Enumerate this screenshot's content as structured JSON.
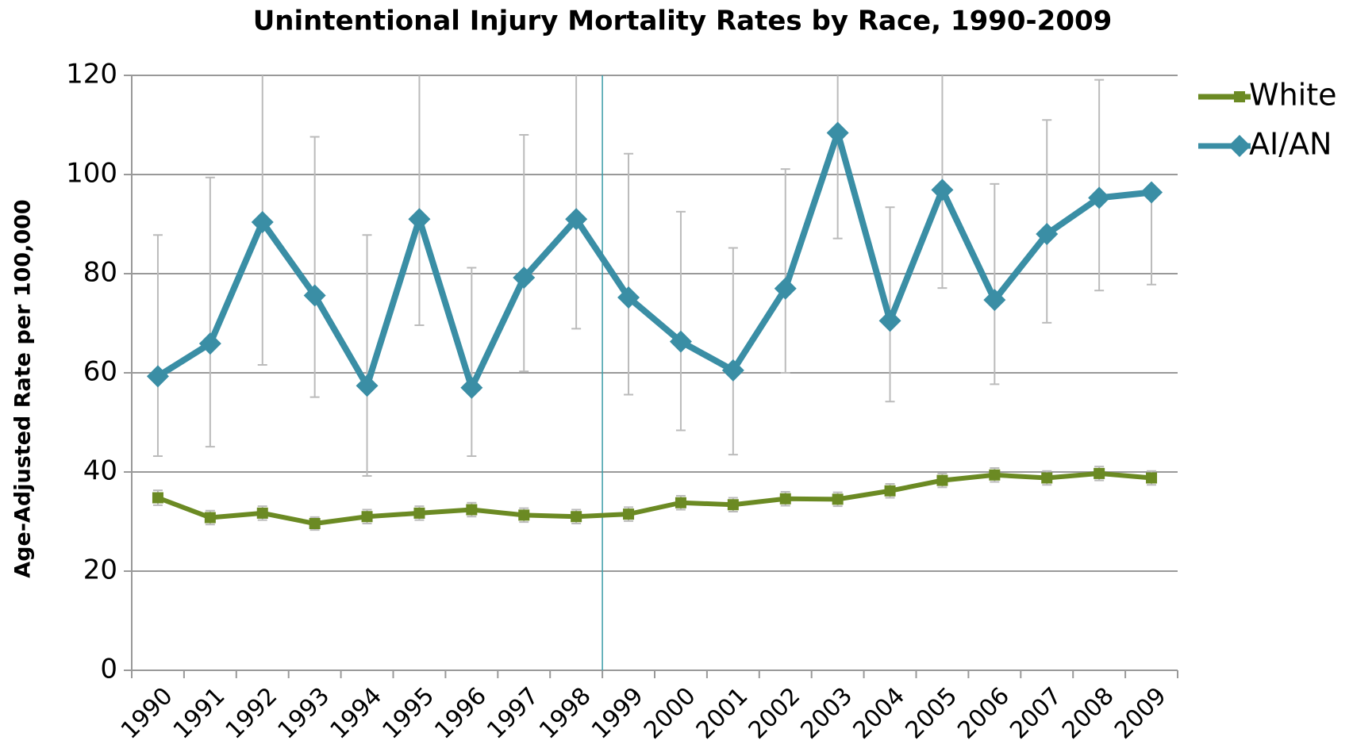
{
  "chart_data": {
    "type": "line",
    "title": "Unintentional Injury Mortality Rates by Race, 1990-2009",
    "y_label": "Age-Adjusted Rate per 100,000",
    "categories": [
      "1990",
      "1991",
      "1992",
      "1993",
      "1994",
      "1995",
      "1996",
      "1997",
      "1998",
      "1999",
      "2000",
      "2001",
      "2002",
      "2003",
      "2004",
      "2005",
      "2006",
      "2007",
      "2008",
      "2009"
    ],
    "series": [
      {
        "name": "White",
        "color": "#6b8a23",
        "marker": "square",
        "values": [
          34.8,
          30.8,
          31.7,
          29.6,
          31,
          31.7,
          32.4,
          31.3,
          31,
          31.5,
          33.8,
          33.4,
          34.6,
          34.5,
          36.2,
          38.3,
          39.4,
          38.8,
          39.7,
          38.8
        ],
        "lower": [
          33.3,
          29.4,
          30.3,
          28.3,
          29.6,
          30.3,
          31,
          29.9,
          29.6,
          30.1,
          32.4,
          32,
          33.2,
          33.1,
          34.8,
          36.9,
          38,
          37.4,
          38.3,
          37.4
        ],
        "upper": [
          36.3,
          32.2,
          33.1,
          30.9,
          32.4,
          33.1,
          33.8,
          32.7,
          32.4,
          32.9,
          35.2,
          34.8,
          36,
          35.9,
          37.6,
          39.7,
          40.8,
          40.2,
          41.1,
          40.2
        ]
      },
      {
        "name": "AI/AN",
        "color": "#3a8ea5",
        "marker": "diamond",
        "values": [
          59.3,
          65.9,
          90.4,
          75.6,
          57.4,
          91,
          57,
          79.2,
          91,
          75.2,
          66.3,
          60.5,
          77,
          108.4,
          70.5,
          96.9,
          74.7,
          88,
          95.3,
          96.4
        ],
        "lower": [
          43.2,
          45.1,
          61.6,
          55.1,
          39.2,
          69.6,
          43.2,
          60.3,
          68.9,
          55.6,
          48.4,
          43.5,
          60,
          87.1,
          54.2,
          77.1,
          57.7,
          70.1,
          76.6,
          77.8
        ],
        "upper": [
          87.8,
          99.4,
          122,
          107.6,
          87.8,
          122,
          81.2,
          108,
          122,
          104.2,
          92.5,
          85.2,
          101.1,
          122,
          93.4,
          122,
          98.1,
          111,
          119.1,
          97
        ]
      }
    ],
    "ylim": [
      0,
      120
    ],
    "yticks": [
      0,
      20,
      40,
      60,
      80,
      100,
      120
    ],
    "grid": true,
    "legend": "right"
  }
}
